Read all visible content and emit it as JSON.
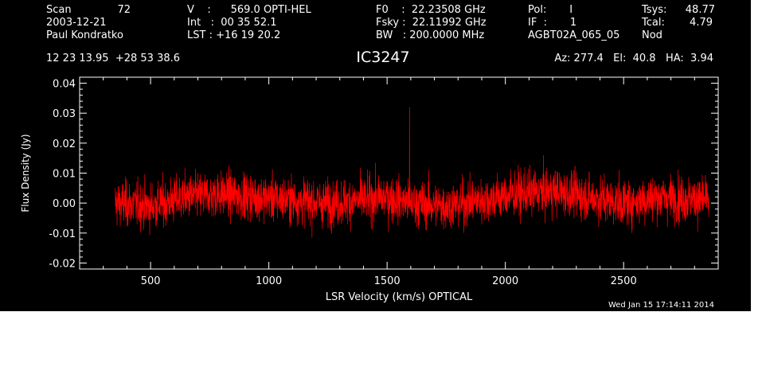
{
  "header": {
    "col1": [
      "Scan",
      "72",
      "2003-12-21",
      "Paul Kondratko"
    ],
    "col2": [
      "V    :      569.0 OPTI-HEL",
      "Int   :  00 35 52.1",
      "LST : +16 19 20.2"
    ],
    "col3": [
      "F0    :  22.23508 GHz",
      "Fsky :  22.11992 GHz",
      "BW   : 200.0000 MHz"
    ],
    "col4": [
      "Pol:       I",
      "IF  :       1",
      "AGBT02A_065_05"
    ],
    "col5": [
      "Tsys:",
      "48.77",
      "Tcal:",
      "4.79",
      "Nod"
    ],
    "coords": "12 23 13.95  +28 53 38.6",
    "source": "IC3247",
    "azelha": "Az: 277.4   El:  40.8   HA:  3.94"
  },
  "footer": {
    "timestamp": "Wed Jan 15 17:14:11 2014"
  },
  "colors": {
    "background": "#000000",
    "trace": "#ff0000",
    "axes": "#ffffff"
  },
  "chart_data": {
    "type": "line",
    "title": "IC3247",
    "xlabel": "LSR Velocity (km/s) OPTICAL",
    "ylabel": "Flux Density (Jy)",
    "xlim": [
      200,
      2900
    ],
    "ylim": [
      -0.022,
      0.042
    ],
    "xticks": [
      500,
      1000,
      1500,
      2000,
      2500
    ],
    "yticks": [
      -0.02,
      -0.01,
      0.0,
      0.01,
      0.02,
      0.03,
      0.04
    ],
    "ytick_labels": [
      "-0.02",
      "-0.01",
      "0.00",
      "0.01",
      "0.02",
      "0.03",
      "0.04"
    ],
    "series": [
      {
        "x_range": [
          350,
          2860
        ],
        "baseline": [
          [
            350,
            0.0
          ],
          [
            500,
            -0.001
          ],
          [
            650,
            0.002
          ],
          [
            800,
            0.003
          ],
          [
            950,
            0.002
          ],
          [
            1100,
            0.001
          ],
          [
            1250,
            0.0
          ],
          [
            1400,
            0.001
          ],
          [
            1500,
            0.002
          ],
          [
            1600,
            0.0
          ],
          [
            1750,
            -0.001
          ],
          [
            1900,
            0.001
          ],
          [
            2050,
            0.003
          ],
          [
            2200,
            0.004
          ],
          [
            2350,
            0.002
          ],
          [
            2500,
            0.0
          ],
          [
            2650,
            0.002
          ],
          [
            2860,
            0.001
          ]
        ],
        "noise_rms": 0.0038,
        "spikes": [
          {
            "x": 1595,
            "y": 0.032
          }
        ]
      }
    ],
    "grid": false
  }
}
